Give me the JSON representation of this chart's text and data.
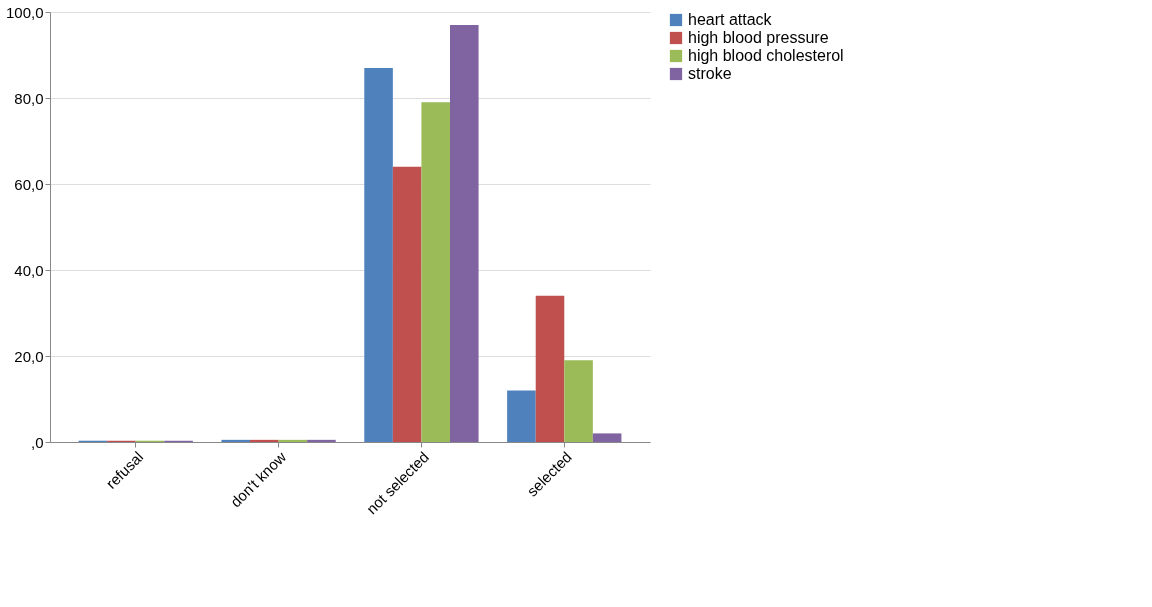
{
  "chart_data": {
    "type": "bar",
    "categories": [
      "refusal",
      "don't know",
      "not selected",
      "selected"
    ],
    "series": [
      {
        "name": "heart attack",
        "color": "#4f81bd",
        "values": [
          0.3,
          0.5,
          87,
          12
        ]
      },
      {
        "name": "high blood pressure",
        "color": "#c0504d",
        "values": [
          0.3,
          0.5,
          64,
          34
        ]
      },
      {
        "name": "high blood cholesterol",
        "color": "#9bbb59",
        "values": [
          0.3,
          0.5,
          79,
          19
        ]
      },
      {
        "name": "stroke",
        "color": "#8064a2",
        "values": [
          0.3,
          0.5,
          97,
          2
        ]
      }
    ],
    "ylim": [
      0,
      100
    ],
    "yticks": [
      {
        "value": 0,
        "label": ",0"
      },
      {
        "value": 20,
        "label": "20,0"
      },
      {
        "value": 40,
        "label": "40,0"
      },
      {
        "value": 60,
        "label": "60,0"
      },
      {
        "value": 80,
        "label": "80,0"
      },
      {
        "value": 100,
        "label": "100,0"
      }
    ],
    "grid": "y",
    "legend": "right"
  }
}
